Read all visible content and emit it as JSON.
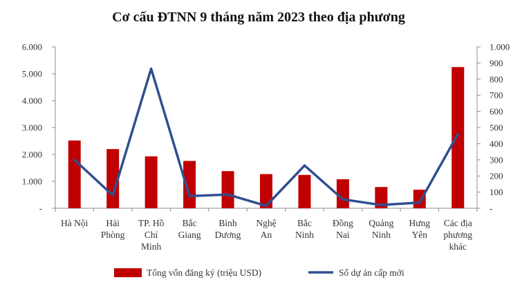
{
  "chart_data": {
    "type": "bar",
    "title": "Cơ cấu ĐTNN 9 tháng năm 2023 theo địa phương",
    "categories": [
      [
        "Hà Nội"
      ],
      [
        "Hải",
        "Phòng"
      ],
      [
        "TP. Hồ",
        "Chí",
        "Minh"
      ],
      [
        "Bắc",
        "Giang"
      ],
      [
        "Bình",
        "Dương"
      ],
      [
        "Nghệ",
        "An"
      ],
      [
        "Bắc",
        "Ninh"
      ],
      [
        "Đồng",
        "Nai"
      ],
      [
        "Quảng",
        "Ninh"
      ],
      [
        "Hưng",
        "Yên"
      ],
      [
        "Các địa",
        "phương",
        "khác"
      ]
    ],
    "series": [
      {
        "name": "Tổng vốn đăng ký (triệu USD)",
        "type": "bar",
        "axis": "left",
        "color": "#C00000",
        "values": [
          2520,
          2200,
          1930,
          1760,
          1380,
          1270,
          1240,
          1080,
          790,
          690,
          5250
        ]
      },
      {
        "name": "Số dự án cấp mới",
        "type": "line",
        "axis": "right",
        "color": "#2F4F8F",
        "values": [
          300,
          80,
          865,
          75,
          85,
          15,
          265,
          55,
          20,
          35,
          460
        ]
      }
    ],
    "y_left": {
      "ylim": [
        0,
        6000
      ],
      "ticks": [
        0,
        1000,
        2000,
        3000,
        4000,
        5000,
        6000
      ],
      "tick_labels": [
        "-",
        "1.000",
        "2.000",
        "3.000",
        "4.000",
        "5.000",
        "6.000"
      ]
    },
    "y_right": {
      "ylim": [
        0,
        1000
      ],
      "ticks": [
        0,
        100,
        200,
        300,
        400,
        500,
        600,
        700,
        800,
        900,
        1000
      ],
      "tick_labels": [
        "-",
        "100",
        "200",
        "300",
        "400",
        "500",
        "600",
        "700",
        "800",
        "900",
        "1.000"
      ]
    },
    "grid": false,
    "legend_position": "bottom"
  }
}
